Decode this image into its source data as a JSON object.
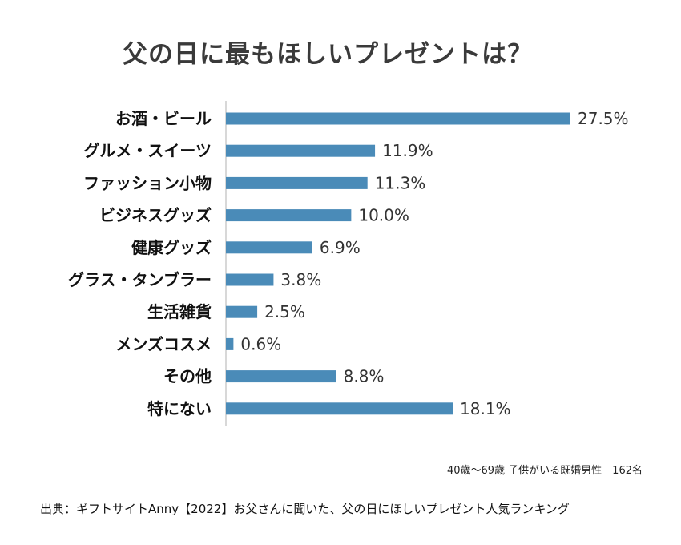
{
  "chart_data": {
    "type": "bar",
    "orientation": "horizontal",
    "title": "父の日に最もほしいプレゼントは？",
    "categories": [
      "お酒・ビール",
      "グルメ・スイーツ",
      "ファッション小物",
      "ビジネスグッズ",
      "健康グッズ",
      "グラス・タンブラー",
      "生活雑貨",
      "メンズコスメ",
      "その他",
      "特にない"
    ],
    "values": [
      27.5,
      11.9,
      11.3,
      10.0,
      6.9,
      3.8,
      2.5,
      0.6,
      8.8,
      18.1
    ],
    "value_labels": [
      "27.5%",
      "11.9%",
      "11.3%",
      "10.0%",
      "6.9%",
      "3.8%",
      "2.5%",
      "0.6%",
      "8.8%",
      "18.1%"
    ],
    "unit": "%",
    "bar_color": "#4a8bb8",
    "xlim": [
      0,
      27.5
    ],
    "grid": false
  },
  "sample_note": "40歳〜69歳 子供がいる既婚男性　162名",
  "source_note": "出典：ギフトサイトAnny【2022】お父さんに聞いた、父の日にほしいプレゼント人気ランキング"
}
